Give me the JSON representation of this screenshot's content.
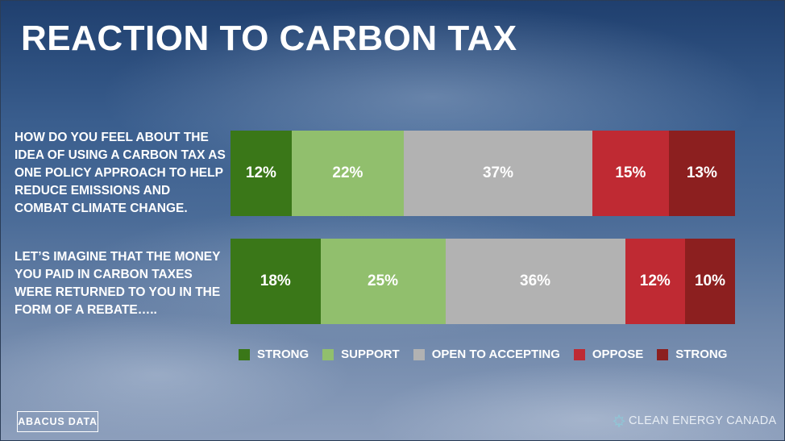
{
  "title": "REACTION TO CARBON TAX",
  "colors": {
    "strong_support": "#3a7718",
    "support": "#91bf6d",
    "open": "#b2b2b2",
    "oppose": "#bf2a33",
    "strong_oppose": "#8c1f1f"
  },
  "chart_data": {
    "type": "bar",
    "orientation": "horizontal-stacked",
    "categories": [
      "HOW DO YOU FEEL ABOUT THE IDEA OF USING A CARBON TAX AS ONE POLICY APPROACH TO HELP REDUCE EMISSIONS AND COMBAT CLIMATE CHANGE.",
      "LET’S IMAGINE THAT THE MONEY YOU PAID IN CARBON TAXES WERE RETURNED TO YOU IN THE FORM OF A REBATE….."
    ],
    "series": [
      {
        "name": "STRONG",
        "color_key": "strong_support",
        "values": [
          12,
          18
        ],
        "labels": [
          "12%",
          "18%"
        ]
      },
      {
        "name": "SUPPORT",
        "color_key": "support",
        "values": [
          22,
          25
        ],
        "labels": [
          "22%",
          "25%"
        ]
      },
      {
        "name": "OPEN TO ACCEPTING",
        "color_key": "open",
        "values": [
          37,
          36
        ],
        "labels": [
          "37%",
          "36%"
        ]
      },
      {
        "name": "OPPOSE",
        "color_key": "oppose",
        "values": [
          15,
          12
        ],
        "labels": [
          "15%",
          "12%"
        ]
      },
      {
        "name": "STRONG",
        "color_key": "strong_oppose",
        "values": [
          13,
          10
        ],
        "labels": [
          "13%",
          "10%"
        ]
      }
    ],
    "legend_position": "bottom"
  },
  "footer": {
    "left_logo": "ABACUS DATA",
    "right_logo": "CLEAN ENERGY CANADA"
  }
}
